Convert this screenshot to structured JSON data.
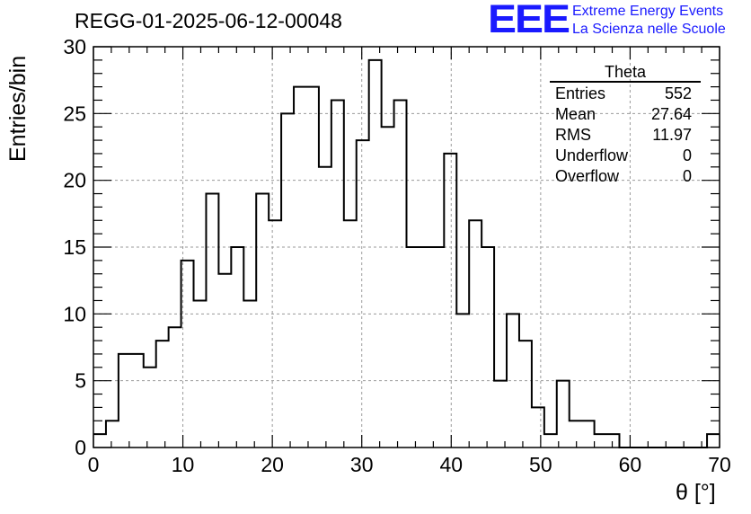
{
  "title": "REGG-01-2025-06-12-00048",
  "logo": {
    "mark": "EEE",
    "line1": "Extreme Energy Events",
    "line2": "La Scienza nelle Scuole",
    "color": "#1a1aff"
  },
  "stats": {
    "name": "Theta",
    "rows": [
      {
        "label": "Entries",
        "value": "552"
      },
      {
        "label": "Mean",
        "value": "27.64"
      },
      {
        "label": "RMS",
        "value": "11.97"
      },
      {
        "label": "Underflow",
        "value": "0"
      },
      {
        "label": "Overflow",
        "value": "0"
      }
    ]
  },
  "chart_data": {
    "type": "bar",
    "histogram": true,
    "bin_width": 1.4,
    "x_start": 0,
    "values": [
      1,
      2,
      7,
      7,
      6,
      8,
      9,
      14,
      11,
      19,
      13,
      15,
      11,
      19,
      17,
      25,
      27,
      27,
      21,
      26,
      17,
      23,
      29,
      24,
      26,
      15,
      15,
      15,
      22,
      10,
      17,
      15,
      5,
      10,
      8,
      3,
      1,
      5,
      2,
      2,
      1,
      1,
      0,
      0,
      0,
      0,
      0,
      0,
      0,
      1
    ],
    "xlim": [
      0,
      70
    ],
    "ylim": [
      0,
      30
    ],
    "xticks": [
      0,
      10,
      20,
      30,
      40,
      50,
      60,
      70
    ],
    "yticks": [
      0,
      5,
      10,
      15,
      20,
      25,
      30
    ],
    "xlabel": "θ [°]",
    "ylabel": "Entries/bin",
    "grid": true,
    "line_color": "#000000"
  }
}
